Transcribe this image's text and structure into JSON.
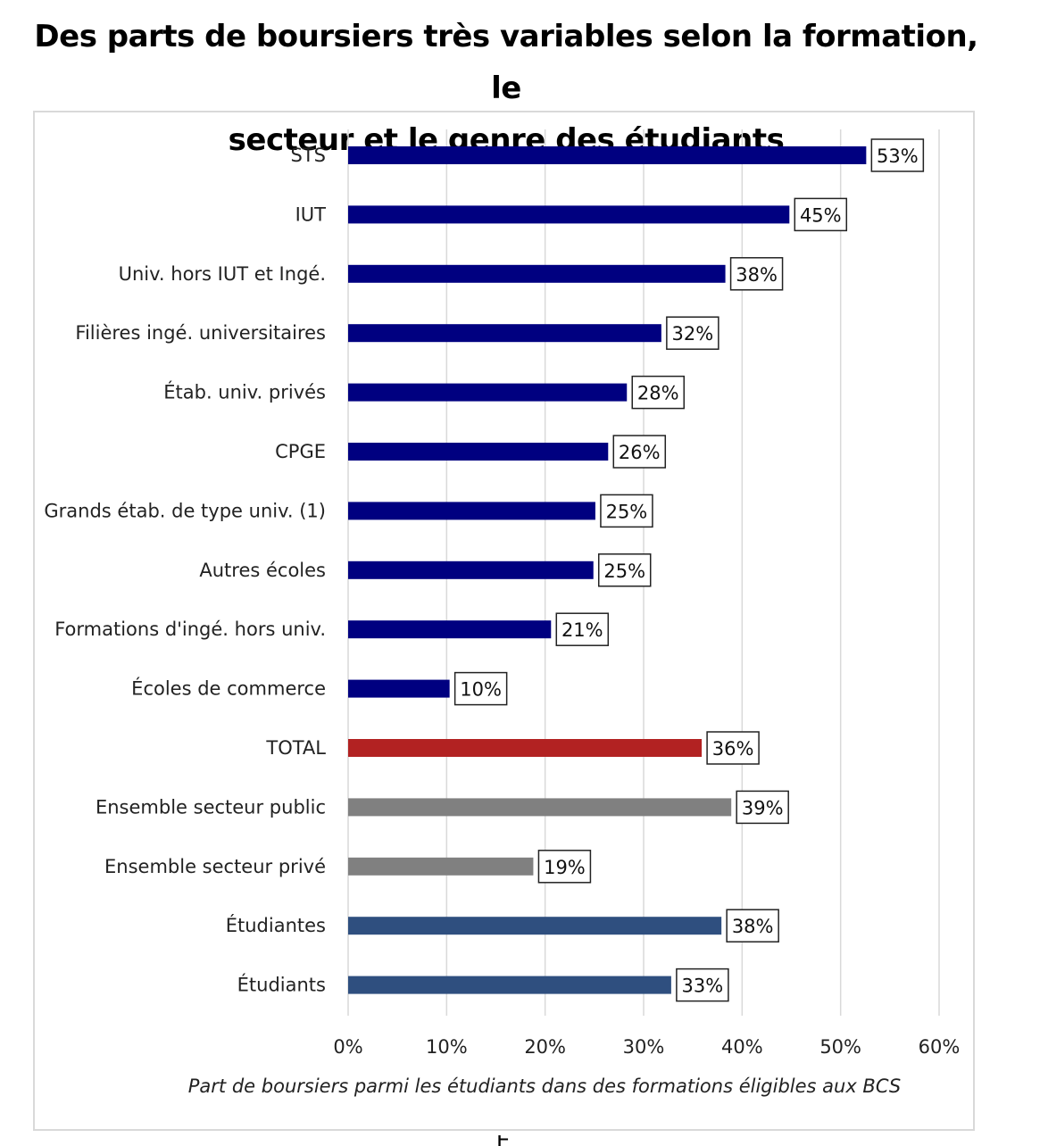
{
  "title_line1": "Des parts de boursiers très variables selon la formation, le",
  "title_line2": "secteur et le genre des étudiants",
  "stray_glyph": "É",
  "chart_data": {
    "type": "bar",
    "orientation": "horizontal",
    "title": "Des parts de boursiers très variables selon la formation, le secteur et le genre des étudiants",
    "xlabel": "Part de boursiers parmi les étudiants dans des formations éligibles aux BCS",
    "ylabel": "",
    "xlim": [
      0,
      60
    ],
    "x_ticks": [
      "0%",
      "10%",
      "20%",
      "30%",
      "40%",
      "50%",
      "60%"
    ],
    "grid": "vertical",
    "legend": "none",
    "categories": [
      "STS",
      "IUT",
      "Univ. hors IUT et Ingé.",
      "Filières ingé. universitaires",
      "Étab. univ. privés",
      "CPGE",
      "Grands étab. de type univ. (1)",
      "Autres écoles",
      "Formations d'ingé. hors univ.",
      "Écoles de commerce",
      "TOTAL",
      "Ensemble secteur public",
      "Ensemble secteur privé",
      "Étudiantes",
      "Étudiants"
    ],
    "values": [
      52.6,
      44.8,
      38.3,
      31.8,
      28.3,
      26.4,
      25.1,
      24.9,
      20.6,
      10.3,
      35.9,
      38.9,
      18.8,
      37.9,
      32.8
    ],
    "data_labels": [
      "53%",
      "45%",
      "38%",
      "32%",
      "28%",
      "26%",
      "25%",
      "25%",
      "21%",
      "10%",
      "36%",
      "39%",
      "19%",
      "38%",
      "33%"
    ],
    "bar_colors": [
      "#000080",
      "#000080",
      "#000080",
      "#000080",
      "#000080",
      "#000080",
      "#000080",
      "#000080",
      "#000080",
      "#000080",
      "#b22222",
      "#808080",
      "#808080",
      "#2f4f7f",
      "#2f4f7f"
    ],
    "gridline_color": "#d9d9d9"
  }
}
